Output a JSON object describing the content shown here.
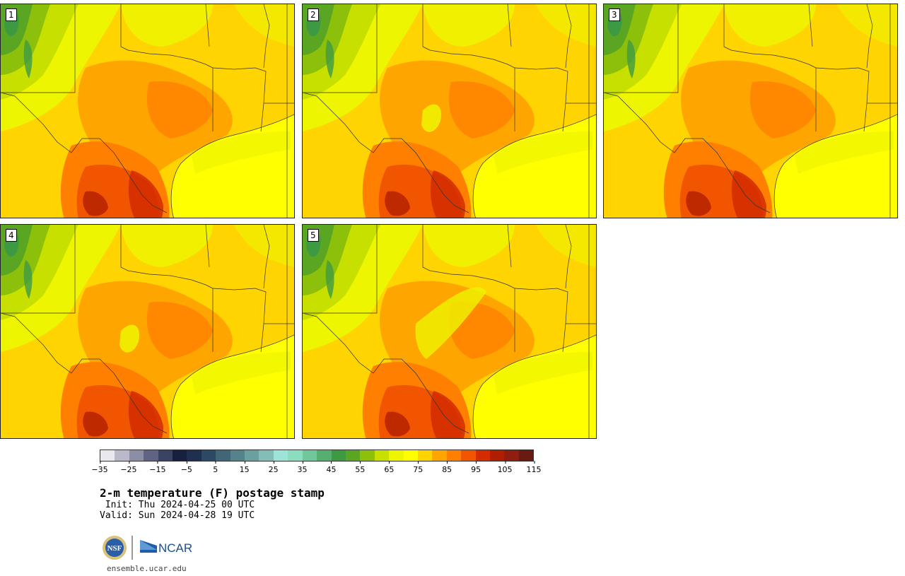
{
  "product": {
    "title": "2-m temperature (F) postage stamp",
    "init": " Init: Thu 2024-04-25 00 UTC",
    "valid": "Valid: Sun 2024-04-28 19 UTC",
    "site": "ensemble.ucar.edu"
  },
  "logos": {
    "nsf": "NSF",
    "ncar": "NCAR"
  },
  "members": [
    {
      "label": "1"
    },
    {
      "label": "2"
    },
    {
      "label": "3"
    },
    {
      "label": "4"
    },
    {
      "label": "5"
    }
  ],
  "colorbar": {
    "colors": [
      "#e8e8ee",
      "#b9b9c9",
      "#8c8ea6",
      "#5f6485",
      "#3a4364",
      "#16223d",
      "#1e2f4f",
      "#2d4864",
      "#406678",
      "#55838c",
      "#6ba0a0",
      "#82bdb6",
      "#9de4d6",
      "#8cdcc0",
      "#6fc79a",
      "#55b070",
      "#3e9a42",
      "#5aa522",
      "#8cc00a",
      "#c8e000",
      "#eef500",
      "#ffff00",
      "#ffd400",
      "#ffa500",
      "#ff7f00",
      "#f25500",
      "#d42c00",
      "#b01e00",
      "#8f1d10",
      "#6a1a10"
    ],
    "tick_labels": [
      "−35",
      "−25",
      "−15",
      "−5",
      "5",
      "15",
      "25",
      "35",
      "45",
      "55",
      "65",
      "75",
      "85",
      "95",
      "105",
      "115"
    ]
  }
}
